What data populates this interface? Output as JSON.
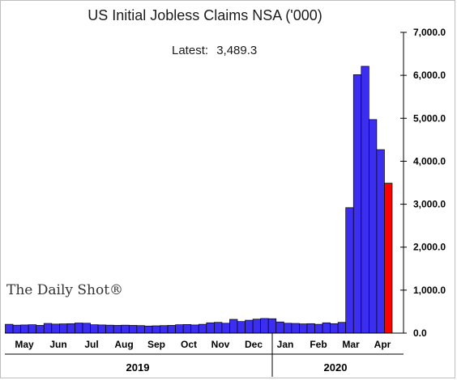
{
  "chart_data": {
    "type": "bar",
    "title": "US Initial Jobless Claims NSA ('000)",
    "annotation": {
      "label": "Latest:",
      "value": "3,489.3"
    },
    "watermark": "The Daily Shot®",
    "ylim": [
      0,
      7000
    ],
    "y_ticks": [
      "0.0",
      "1,000.0",
      "2,000.0",
      "3,000.0",
      "4,000.0",
      "5,000.0",
      "6,000.0",
      "7,000.0"
    ],
    "y_tick_values": [
      0,
      1000,
      2000,
      3000,
      4000,
      5000,
      6000,
      7000
    ],
    "month_labels": [
      "May",
      "Jun",
      "Jul",
      "Aug",
      "Sep",
      "Oct",
      "Nov",
      "Dec",
      "Jan",
      "Feb",
      "Mar",
      "Apr"
    ],
    "year_labels": [
      "2019",
      "2020"
    ],
    "colors": {
      "bar": "#3b2ef0",
      "latest": "#ff0000",
      "stroke": "#000000"
    },
    "values": [
      205,
      185,
      190,
      195,
      180,
      225,
      210,
      215,
      220,
      235,
      230,
      195,
      190,
      185,
      180,
      185,
      180,
      175,
      165,
      170,
      175,
      180,
      195,
      200,
      190,
      205,
      240,
      250,
      230,
      320,
      270,
      300,
      325,
      340,
      335,
      260,
      230,
      225,
      215,
      220,
      205,
      240,
      220,
      250,
      2920,
      6015,
      6210,
      4970,
      4270,
      3489.3
    ]
  }
}
